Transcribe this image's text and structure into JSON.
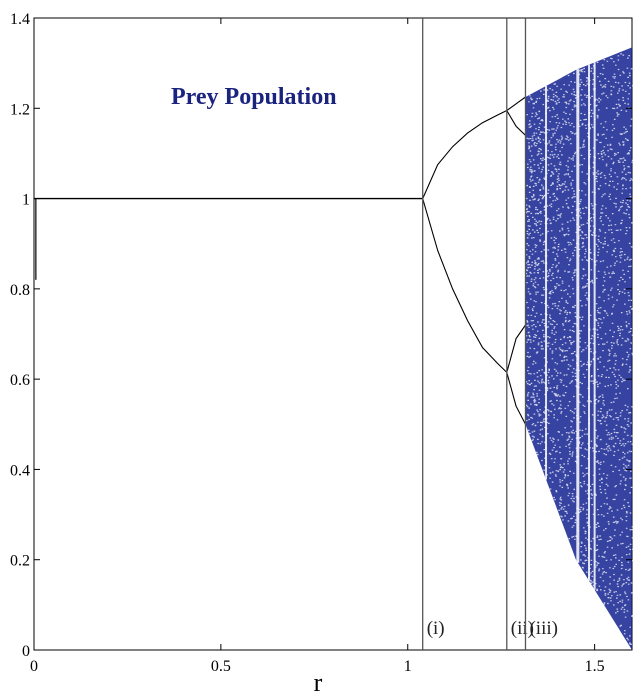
{
  "chart_data": {
    "type": "scatter",
    "title": "Prey Population",
    "xlabel": "r",
    "ylabel": "",
    "xlim": [
      0,
      1.6
    ],
    "ylim": [
      0,
      1.4
    ],
    "xticks": [
      0,
      0.5,
      1,
      1.5
    ],
    "xtick_labels": [
      "0",
      "0.5",
      "1",
      "1.5"
    ],
    "yticks": [
      0,
      0.2,
      0.4,
      0.6,
      0.8,
      1,
      1.2,
      1.4
    ],
    "ytick_labels": [
      "0",
      "0.2",
      "0.4",
      "0.6",
      "0.8",
      "1",
      "1.2",
      "1.4"
    ],
    "grid": false,
    "regions": [
      {
        "label": "(i)",
        "x": 1.04
      },
      {
        "label": "(ii)",
        "x": 1.265
      },
      {
        "label": "(iii)",
        "x": 1.315
      }
    ],
    "branches": {
      "fixed_point": {
        "r": [
          0,
          1.04
        ],
        "value": 1.0
      },
      "period2_upper": [
        [
          1.04,
          1.0
        ],
        [
          1.08,
          1.075
        ],
        [
          1.12,
          1.115
        ],
        [
          1.16,
          1.145
        ],
        [
          1.2,
          1.168
        ],
        [
          1.24,
          1.185
        ],
        [
          1.265,
          1.195
        ]
      ],
      "period2_lower": [
        [
          1.04,
          1.0
        ],
        [
          1.08,
          0.885
        ],
        [
          1.12,
          0.8
        ],
        [
          1.16,
          0.73
        ],
        [
          1.2,
          0.67
        ],
        [
          1.24,
          0.635
        ],
        [
          1.265,
          0.615
        ]
      ],
      "period4_upper_outer": [
        [
          1.265,
          1.195
        ],
        [
          1.29,
          1.21
        ],
        [
          1.315,
          1.225
        ]
      ],
      "period4_upper_inner": [
        [
          1.265,
          1.195
        ],
        [
          1.29,
          1.16
        ],
        [
          1.315,
          1.14
        ]
      ],
      "period4_lower_outer": [
        [
          1.265,
          0.615
        ],
        [
          1.29,
          0.54
        ],
        [
          1.315,
          0.5
        ]
      ],
      "period4_lower_inner": [
        [
          1.265,
          0.615
        ],
        [
          1.29,
          0.69
        ],
        [
          1.315,
          0.72
        ]
      ],
      "chaos_upper_bound": [
        [
          1.315,
          1.225
        ],
        [
          1.45,
          1.285
        ],
        [
          1.6,
          1.335
        ]
      ],
      "chaos_lower_bound": [
        [
          1.315,
          0.5
        ],
        [
          1.45,
          0.2
        ],
        [
          1.6,
          0.0
        ]
      ],
      "left_tail": {
        "r": 0.005,
        "y_range": [
          0.82,
          1.0
        ]
      }
    },
    "colors": {
      "curve": "#000000",
      "chaos": "#0a1a8c",
      "title": "#1a237e",
      "axis": "#000000",
      "vline": "#555555"
    }
  }
}
